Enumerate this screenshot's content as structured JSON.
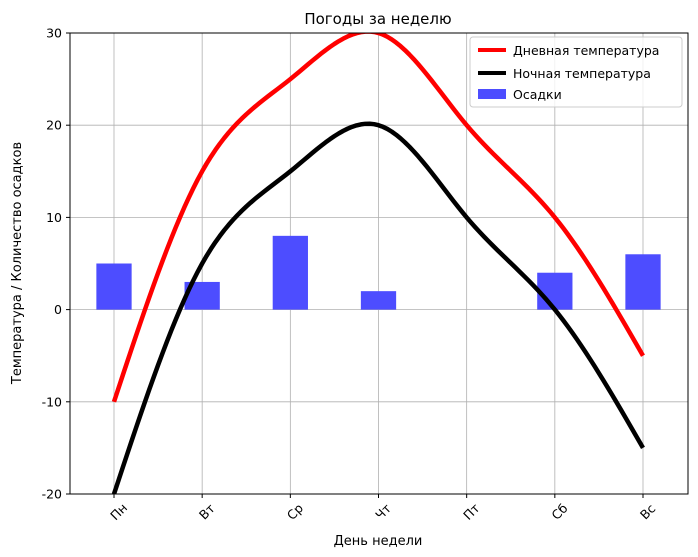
{
  "chart_data": {
    "type": "line",
    "title": "Погоды за неделю",
    "xlabel": "День недели",
    "ylabel": "Температура / Количество осадков",
    "categories": [
      "Пн",
      "Вт",
      "Ср",
      "Чт",
      "Пт",
      "Сб",
      "Вс"
    ],
    "ylim": [
      -20,
      30
    ],
    "yticks": [
      -20,
      -10,
      0,
      10,
      20,
      30
    ],
    "grid": true,
    "legend_position": "top-right",
    "series": [
      {
        "name": "Дневная температура",
        "type": "line",
        "smooth": true,
        "color": "#ff0000",
        "values": [
          -10,
          15,
          25,
          30,
          20,
          10,
          -5
        ]
      },
      {
        "name": "Ночная температура",
        "type": "line",
        "smooth": true,
        "color": "#000000",
        "values": [
          -20,
          5,
          15,
          20,
          10,
          0,
          -15
        ]
      },
      {
        "name": "Осадки",
        "type": "bar",
        "color": "#4d4dff",
        "values": [
          5,
          3,
          8,
          2,
          0,
          4,
          6
        ]
      }
    ]
  }
}
